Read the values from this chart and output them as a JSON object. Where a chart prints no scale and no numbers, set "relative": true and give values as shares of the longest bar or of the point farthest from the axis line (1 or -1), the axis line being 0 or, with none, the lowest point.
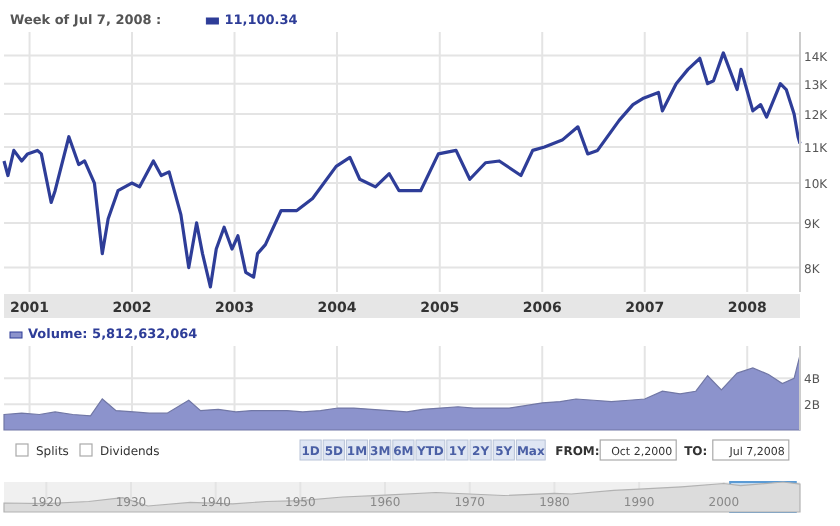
{
  "chart_data": [
    {
      "type": "line",
      "title": "Week of Jul 7, 2008 :",
      "legend": "top left",
      "log": true,
      "grid": true,
      "xlim": [
        "2000-10-02",
        "2008-07-07"
      ],
      "ylim": [
        7500,
        14900
      ],
      "xticks": [
        {
          "value": "2001-01-01",
          "label": "2001"
        },
        {
          "value": "2002-01-01",
          "label": "2002"
        },
        {
          "value": "2003-01-01",
          "label": "2003"
        },
        {
          "value": "2004-01-01",
          "label": "2004"
        },
        {
          "value": "2005-01-01",
          "label": "2005"
        },
        {
          "value": "2006-01-01",
          "label": "2006"
        },
        {
          "value": "2007-01-01",
          "label": "2007"
        },
        {
          "value": "2008-01-01",
          "label": "2008"
        }
      ],
      "yticks": [
        {
          "value": 8000,
          "label": "8K"
        },
        {
          "value": 9000,
          "label": "9K"
        },
        {
          "value": 10000,
          "label": "10K"
        },
        {
          "value": 11000,
          "label": "11K"
        },
        {
          "value": 12000,
          "label": "12K"
        },
        {
          "value": 13000,
          "label": "13K"
        },
        {
          "value": 14000,
          "label": "14K"
        }
      ],
      "x": [
        "2000-10-02",
        "2000-10-16",
        "2000-11-06",
        "2000-12-04",
        "2000-12-25",
        "2001-01-29",
        "2001-02-12",
        "2001-03-19",
        "2001-04-02",
        "2001-05-21",
        "2001-06-25",
        "2001-07-16",
        "2001-08-20",
        "2001-09-17",
        "2001-10-08",
        "2001-11-12",
        "2001-12-31",
        "2002-01-28",
        "2002-03-18",
        "2002-04-15",
        "2002-05-13",
        "2002-06-24",
        "2002-07-22",
        "2002-08-19",
        "2002-09-09",
        "2002-10-07",
        "2002-10-28",
        "2002-11-25",
        "2002-12-23",
        "2003-01-13",
        "2003-02-10",
        "2003-03-10",
        "2003-03-24",
        "2003-04-21",
        "2003-06-16",
        "2003-08-11",
        "2003-10-06",
        "2003-12-29",
        "2004-02-16",
        "2004-03-22",
        "2004-05-17",
        "2004-07-05",
        "2004-08-09",
        "2004-10-25",
        "2004-12-27",
        "2005-02-28",
        "2005-04-18",
        "2005-06-13",
        "2005-08-01",
        "2005-10-17",
        "2005-11-28",
        "2006-01-09",
        "2006-03-13",
        "2006-05-08",
        "2006-06-12",
        "2006-07-17",
        "2006-10-02",
        "2006-11-20",
        "2006-12-25",
        "2007-02-19",
        "2007-03-05",
        "2007-04-23",
        "2007-06-04",
        "2007-07-16",
        "2007-08-13",
        "2007-09-03",
        "2007-10-08",
        "2007-11-26",
        "2007-12-10",
        "2008-01-21",
        "2008-02-18",
        "2008-03-10",
        "2008-04-28",
        "2008-05-19",
        "2008-06-16",
        "2008-06-30",
        "2008-07-07"
      ],
      "series": [
        {
          "name": "11,100.34",
          "color": "#2e3d98",
          "values": [
            10600,
            10200,
            10900,
            10600,
            10800,
            10900,
            10800,
            9500,
            9800,
            11300,
            10500,
            10600,
            10000,
            8300,
            9100,
            9800,
            10000,
            9900,
            10600,
            10200,
            10300,
            9200,
            8000,
            9000,
            8300,
            7600,
            8400,
            8900,
            8400,
            8700,
            7900,
            7800,
            8300,
            8500,
            9300,
            9300,
            9600,
            10450,
            10700,
            10100,
            9900,
            10250,
            9800,
            9800,
            10800,
            10900,
            10100,
            10550,
            10600,
            10200,
            10900,
            11000,
            11200,
            11600,
            10800,
            10900,
            11800,
            12300,
            12500,
            12700,
            12100,
            13000,
            13500,
            13900,
            13000,
            13100,
            14100,
            12800,
            13500,
            12100,
            12300,
            11900,
            13000,
            12800,
            12000,
            11300,
            11100
          ]
        }
      ]
    },
    {
      "type": "area",
      "legend": "top left",
      "grid": true,
      "tick_labels": "y",
      "xlim": [
        "2000-10-02",
        "2008-07-07"
      ],
      "ylim": [
        0,
        6500000000
      ],
      "xticks": [
        {
          "value": "2001-01-01",
          "label": null
        },
        {
          "value": "2002-01-01",
          "label": null
        },
        {
          "value": "2003-01-01",
          "label": null
        },
        {
          "value": "2004-01-01",
          "label": null
        },
        {
          "value": "2005-01-01",
          "label": null
        },
        {
          "value": "2006-01-01",
          "label": null
        },
        {
          "value": "2007-01-01",
          "label": null
        },
        {
          "value": "2008-01-01",
          "label": null
        }
      ],
      "yticks": [
        {
          "value": 2000000000,
          "label": "2B"
        },
        {
          "value": 4000000000,
          "label": "4B"
        }
      ],
      "x": [
        "2000-10-02",
        "2000-12-04",
        "2001-02-05",
        "2001-04-02",
        "2001-06-04",
        "2001-08-06",
        "2001-09-17",
        "2001-11-05",
        "2002-01-07",
        "2002-03-04",
        "2002-05-06",
        "2002-07-22",
        "2002-09-02",
        "2002-11-04",
        "2003-01-06",
        "2003-03-03",
        "2003-05-05",
        "2003-07-07",
        "2003-09-01",
        "2003-11-03",
        "2004-01-05",
        "2004-03-01",
        "2004-05-03",
        "2004-07-05",
        "2004-09-06",
        "2004-11-01",
        "2005-01-03",
        "2005-03-07",
        "2005-05-02",
        "2005-07-04",
        "2005-09-05",
        "2005-11-07",
        "2006-01-02",
        "2006-03-06",
        "2006-05-01",
        "2006-07-03",
        "2006-09-04",
        "2006-11-06",
        "2007-01-01",
        "2007-03-05",
        "2007-05-07",
        "2007-07-02",
        "2007-08-13",
        "2007-10-01",
        "2007-11-26",
        "2008-01-21",
        "2008-03-17",
        "2008-05-05",
        "2008-06-16",
        "2008-07-07"
      ],
      "series": [
        {
          "name": "Volume: 5,812,632,064",
          "color": "#8c93cc",
          "values": [
            1200000000,
            1300000000,
            1200000000,
            1400000000,
            1200000000,
            1100000000,
            2400000000,
            1500000000,
            1400000000,
            1300000000,
            1300000000,
            2300000000,
            1500000000,
            1600000000,
            1400000000,
            1500000000,
            1500000000,
            1500000000,
            1400000000,
            1500000000,
            1700000000,
            1700000000,
            1600000000,
            1500000000,
            1400000000,
            1600000000,
            1700000000,
            1800000000,
            1700000000,
            1700000000,
            1700000000,
            1900000000,
            2100000000,
            2200000000,
            2400000000,
            2300000000,
            2200000000,
            2300000000,
            2400000000,
            3000000000,
            2800000000,
            3000000000,
            4200000000,
            3100000000,
            4400000000,
            4800000000,
            4300000000,
            3600000000,
            4000000000,
            5800000000
          ]
        }
      ],
      "annotations": [
        "Splits",
        "Dividends",
        "1D",
        "5D",
        "1M",
        "3M",
        "6M",
        "YTD",
        "1Y",
        "2Y",
        "5Y",
        "Max",
        "FROM:",
        "Oct 2,2000",
        "TO:",
        "Jul 7,2008"
      ]
    },
    {
      "type": "area",
      "relative": true,
      "grid": "x",
      "tick_labels": "x",
      "xlim": [
        1915,
        2009
      ],
      "xticks": [
        1920,
        1930,
        1940,
        1950,
        1960,
        1970,
        1980,
        1990,
        2000
      ],
      "x": [
        1915,
        1920,
        1925,
        1929,
        1932,
        1937,
        1942,
        1946,
        1950,
        1955,
        1960,
        1966,
        1970,
        1974,
        1980,
        1982,
        1987,
        1990,
        1995,
        2000,
        2002,
        2007,
        2009
      ],
      "series": [
        {
          "color": "#dcdcdc",
          "values": [
            0.3,
            0.28,
            0.35,
            0.48,
            0.2,
            0.32,
            0.27,
            0.35,
            0.38,
            0.5,
            0.56,
            0.65,
            0.6,
            0.55,
            0.62,
            0.6,
            0.72,
            0.76,
            0.84,
            0.95,
            0.88,
            1,
            0.93
          ]
        }
      ],
      "bands": [
        {
          "axis": "x",
          "from": 2000.75,
          "to": 2008.5,
          "color": "#c7dcef"
        }
      ]
    }
  ]
}
